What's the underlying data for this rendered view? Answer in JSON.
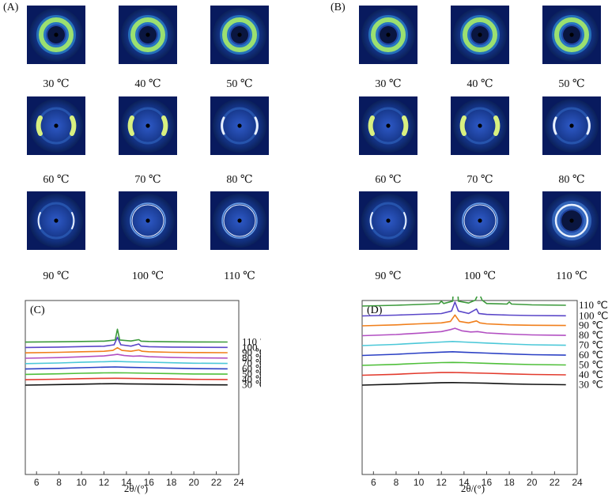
{
  "panels": {
    "A": {
      "letter": "(A)"
    },
    "B": {
      "letter": "(B)"
    },
    "C": {
      "letter": "(C)"
    },
    "D": {
      "letter": "(D)"
    }
  },
  "saxs_temperatures": [
    "30 ℃",
    "40 ℃",
    "50 ℃",
    "60 ℃",
    "70 ℃",
    "80 ℃",
    "90 ℃",
    "100 ℃",
    "110 ℃"
  ],
  "colors": {
    "tile_bg": "#081a5e",
    "ring_green": "#9be070",
    "ring_white": "#e8f0ff",
    "c30": "#111111",
    "c40": "#e23b2e",
    "c50": "#4fbf3a",
    "c60": "#2a3fc4",
    "c70": "#4cc8d8",
    "c80": "#b24fc2",
    "c90": "#f07f1c",
    "c100": "#5a46c8",
    "c110": "#3c9a3c"
  },
  "chart_data": [
    {
      "type": "line",
      "panel": "(C)",
      "xlabel": "2θ/(°)",
      "xlim": [
        5,
        24
      ],
      "x_ticks": [
        "6",
        "8",
        "10",
        "12",
        "14",
        "16",
        "18",
        "20",
        "22",
        "24"
      ],
      "series": [
        {
          "name": "30 ℃",
          "color": "#111111",
          "x": [
            5,
            8,
            10,
            12,
            13,
            14,
            16,
            18,
            20,
            23
          ],
          "y": [
            0.0,
            0.1,
            0.18,
            0.25,
            0.26,
            0.24,
            0.19,
            0.13,
            0.08,
            0.04
          ]
        },
        {
          "name": "40 ℃",
          "color": "#e23b2e",
          "x": [
            5,
            8,
            10,
            12,
            13,
            14,
            16,
            18,
            20,
            23
          ],
          "y": [
            1.0,
            1.1,
            1.2,
            1.27,
            1.28,
            1.26,
            1.2,
            1.14,
            1.08,
            1.04
          ]
        },
        {
          "name": "50 ℃",
          "color": "#4fbf3a",
          "x": [
            5,
            8,
            10,
            12,
            13,
            14,
            16,
            18,
            20,
            23
          ],
          "y": [
            2.0,
            2.1,
            2.2,
            2.28,
            2.3,
            2.28,
            2.21,
            2.14,
            2.08,
            2.04
          ]
        },
        {
          "name": "60 ℃",
          "color": "#2a3fc4",
          "x": [
            5,
            8,
            10,
            12,
            13,
            14,
            16,
            18,
            20,
            23
          ],
          "y": [
            3.0,
            3.12,
            3.24,
            3.34,
            3.38,
            3.33,
            3.24,
            3.15,
            3.08,
            3.03
          ]
        },
        {
          "name": "70 ℃",
          "color": "#4cc8d8",
          "x": [
            5,
            8,
            10,
            12,
            13,
            14,
            16,
            18,
            20,
            23
          ],
          "y": [
            4.0,
            4.12,
            4.25,
            4.36,
            4.42,
            4.36,
            4.26,
            4.16,
            4.08,
            4.03
          ]
        },
        {
          "name": "80 ℃",
          "color": "#b24fc2",
          "x": [
            5,
            8,
            10,
            12,
            12.8,
            13.2,
            13.8,
            14.6,
            15.2,
            16,
            18,
            20,
            23
          ],
          "y": [
            5.0,
            5.12,
            5.26,
            5.42,
            5.62,
            5.72,
            5.5,
            5.38,
            5.42,
            5.28,
            5.16,
            5.08,
            5.03
          ]
        },
        {
          "name": "90 ℃",
          "color": "#f07f1c",
          "x": [
            5,
            8,
            10,
            12,
            12.8,
            13.2,
            13.6,
            14.4,
            15.1,
            15.4,
            16,
            18,
            20,
            23
          ],
          "y": [
            6.0,
            6.1,
            6.2,
            6.3,
            6.45,
            6.95,
            6.45,
            6.3,
            6.55,
            6.3,
            6.2,
            6.1,
            6.06,
            6.03
          ]
        },
        {
          "name": "100 ℃",
          "color": "#5a46c8",
          "x": [
            5,
            8,
            10,
            12,
            12.9,
            13.2,
            13.5,
            14.4,
            15.1,
            15.3,
            16,
            18,
            20,
            23
          ],
          "y": [
            7.0,
            7.08,
            7.16,
            7.24,
            7.5,
            8.9,
            7.5,
            7.25,
            7.65,
            7.25,
            7.15,
            7.08,
            7.04,
            7.02
          ]
        },
        {
          "name": "110 ℃",
          "color": "#3c9a3c",
          "x": [
            5,
            8,
            10,
            12,
            13.0,
            13.2,
            13.4,
            14.4,
            15.1,
            15.3,
            16,
            18,
            20,
            23
          ],
          "y": [
            8.0,
            8.06,
            8.12,
            8.18,
            8.4,
            10.4,
            8.4,
            8.2,
            8.45,
            8.18,
            8.12,
            8.06,
            8.03,
            8.02
          ]
        }
      ]
    },
    {
      "type": "line",
      "panel": "(D)",
      "xlabel": "2θ/(°)",
      "xlim": [
        5,
        24
      ],
      "x_ticks": [
        "6",
        "8",
        "10",
        "12",
        "14",
        "16",
        "18",
        "20",
        "22",
        "24"
      ],
      "series": [
        {
          "name": "30 ℃",
          "color": "#111111",
          "x": [
            5,
            8,
            10,
            12,
            13,
            14,
            16,
            18,
            20,
            23
          ],
          "y": [
            0.0,
            0.1,
            0.18,
            0.25,
            0.26,
            0.24,
            0.19,
            0.13,
            0.08,
            0.04
          ]
        },
        {
          "name": "40 ℃",
          "color": "#e23b2e",
          "x": [
            5,
            8,
            10,
            12,
            13,
            14,
            16,
            18,
            20,
            23
          ],
          "y": [
            1.0,
            1.1,
            1.2,
            1.27,
            1.28,
            1.26,
            1.2,
            1.14,
            1.08,
            1.04
          ]
        },
        {
          "name": "50 ℃",
          "color": "#4fbf3a",
          "x": [
            5,
            8,
            10,
            12,
            13,
            14,
            16,
            18,
            20,
            23
          ],
          "y": [
            2.0,
            2.1,
            2.2,
            2.28,
            2.3,
            2.28,
            2.21,
            2.14,
            2.08,
            2.04
          ]
        },
        {
          "name": "60 ℃",
          "color": "#2a3fc4",
          "x": [
            5,
            8,
            10,
            12,
            13,
            14,
            16,
            18,
            20,
            23
          ],
          "y": [
            3.0,
            3.12,
            3.24,
            3.34,
            3.38,
            3.33,
            3.24,
            3.15,
            3.08,
            3.03
          ]
        },
        {
          "name": "70 ℃",
          "color": "#4cc8d8",
          "x": [
            5,
            8,
            10,
            12,
            13,
            14,
            16,
            18,
            20,
            23
          ],
          "y": [
            4.0,
            4.12,
            4.25,
            4.36,
            4.42,
            4.36,
            4.26,
            4.16,
            4.08,
            4.03
          ]
        },
        {
          "name": "80 ℃",
          "color": "#b24fc2",
          "x": [
            5,
            8,
            10,
            12,
            12.8,
            13.2,
            13.8,
            14.6,
            15.2,
            16,
            18,
            20,
            23
          ],
          "y": [
            5.0,
            5.12,
            5.26,
            5.42,
            5.62,
            5.75,
            5.5,
            5.38,
            5.42,
            5.28,
            5.16,
            5.08,
            5.03
          ]
        },
        {
          "name": "90 ℃",
          "color": "#f07f1c",
          "x": [
            5,
            8,
            10,
            12,
            12.8,
            13.2,
            13.6,
            14.4,
            15.1,
            15.4,
            16,
            18,
            20,
            23
          ],
          "y": [
            6.0,
            6.1,
            6.2,
            6.3,
            6.45,
            7.1,
            6.45,
            6.3,
            6.5,
            6.3,
            6.2,
            6.1,
            6.06,
            6.03
          ]
        },
        {
          "name": "100 ℃",
          "color": "#5a46c8",
          "x": [
            5,
            8,
            10,
            12,
            12.9,
            13.2,
            13.5,
            14.4,
            15.1,
            15.3,
            16,
            18,
            20,
            23
          ],
          "y": [
            7.0,
            7.08,
            7.16,
            7.24,
            7.5,
            8.4,
            7.5,
            7.25,
            7.7,
            7.25,
            7.15,
            7.08,
            7.04,
            7.02
          ]
        },
        {
          "name": "110 ℃",
          "color": "#3c9a3c",
          "x": [
            5,
            8,
            10,
            11.8,
            12.0,
            12.2,
            13.0,
            13.25,
            13.5,
            14.4,
            15.0,
            15.3,
            15.6,
            16,
            17.8,
            18.0,
            18.2,
            20,
            23
          ],
          "y": [
            8.0,
            8.08,
            8.16,
            8.24,
            8.5,
            8.26,
            8.5,
            13.2,
            8.5,
            8.3,
            8.6,
            9.4,
            8.6,
            8.26,
            8.2,
            8.42,
            8.2,
            8.12,
            8.08
          ]
        }
      ]
    }
  ]
}
